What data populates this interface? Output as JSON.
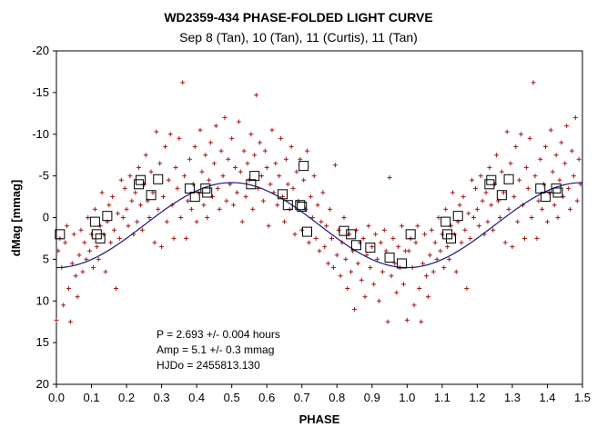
{
  "chart_data": {
    "type": "scatter",
    "title": "WD2359-434 PHASE-FOLDED LIGHT CURVE",
    "subtitle": "Sep 8 (Tan), 10 (Tan), 11 (Curtis), 11 (Tan)",
    "xlabel": "PHASE",
    "ylabel": "dMag [mmag]",
    "xlim": [
      0.0,
      1.5
    ],
    "ylim": [
      -20,
      20
    ],
    "y_inverted": true,
    "grid": false,
    "x_ticks": [
      "0.0",
      "0.1",
      "0.2",
      "0.3",
      "0.4",
      "0.5",
      "0.6",
      "0.7",
      "0.8",
      "0.9",
      "1.0",
      "1.1",
      "1.2",
      "1.3",
      "1.4",
      "1.5"
    ],
    "y_ticks": [
      "-20",
      "-15",
      "-10",
      "-5",
      "0",
      "5",
      "10",
      "15",
      "20"
    ],
    "colors": {
      "points": "#a01818",
      "binned": "#000000",
      "fit": "#1a1a7a"
    },
    "annotations": [
      "P = 2.693 +/- 0.004 hours",
      "Amp = 5.1 +/- 0.3 mmag",
      "HJDo = 2455813.130"
    ],
    "fit": {
      "type": "sinusoid",
      "period_phase": 1.0,
      "amplitude": 5.1,
      "offset": 0.9,
      "peak_phase": 0.5
    },
    "binned_points": [
      {
        "x": 0.01,
        "y": 2.0
      },
      {
        "x": 0.11,
        "y": 0.5
      },
      {
        "x": 0.115,
        "y": 2.0
      },
      {
        "x": 0.125,
        "y": 2.5
      },
      {
        "x": 0.145,
        "y": -0.2
      },
      {
        "x": 0.235,
        "y": -4.0
      },
      {
        "x": 0.24,
        "y": -4.5
      },
      {
        "x": 0.27,
        "y": -2.7
      },
      {
        "x": 0.29,
        "y": -4.6
      },
      {
        "x": 0.38,
        "y": -3.5
      },
      {
        "x": 0.395,
        "y": -2.5
      },
      {
        "x": 0.425,
        "y": -3.5
      },
      {
        "x": 0.43,
        "y": -3.0
      },
      {
        "x": 0.555,
        "y": -4.0
      },
      {
        "x": 0.565,
        "y": -5.0
      },
      {
        "x": 0.645,
        "y": -2.8
      },
      {
        "x": 0.66,
        "y": -1.5
      },
      {
        "x": 0.695,
        "y": -1.5
      },
      {
        "x": 0.7,
        "y": -1.3
      },
      {
        "x": 0.705,
        "y": -6.2
      },
      {
        "x": 0.715,
        "y": 1.7
      },
      {
        "x": 0.82,
        "y": 1.6
      },
      {
        "x": 0.84,
        "y": 2.0
      },
      {
        "x": 0.855,
        "y": 3.3
      },
      {
        "x": 0.895,
        "y": 3.6
      },
      {
        "x": 0.95,
        "y": 4.8
      },
      {
        "x": 0.985,
        "y": 5.5
      },
      {
        "x": 1.01,
        "y": 2.0
      },
      {
        "x": 1.11,
        "y": 0.5
      },
      {
        "x": 1.115,
        "y": 2.0
      },
      {
        "x": 1.125,
        "y": 2.5
      },
      {
        "x": 1.145,
        "y": -0.2
      },
      {
        "x": 1.235,
        "y": -4.0
      },
      {
        "x": 1.24,
        "y": -4.5
      },
      {
        "x": 1.27,
        "y": -2.7
      },
      {
        "x": 1.29,
        "y": -4.6
      },
      {
        "x": 1.38,
        "y": -3.5
      },
      {
        "x": 1.395,
        "y": -2.5
      },
      {
        "x": 1.425,
        "y": -3.5
      },
      {
        "x": 1.43,
        "y": -3.0
      }
    ],
    "scatter_points": [
      {
        "x": 0.0,
        "y": 12.3
      },
      {
        "x": 0.005,
        "y": 4.0
      },
      {
        "x": 0.01,
        "y": 2.5
      },
      {
        "x": 0.015,
        "y": 6.0
      },
      {
        "x": 0.02,
        "y": 10.5
      },
      {
        "x": 0.025,
        "y": 3.0
      },
      {
        "x": 0.03,
        "y": 1.0
      },
      {
        "x": 0.035,
        "y": 8.5
      },
      {
        "x": 0.04,
        "y": 12.5
      },
      {
        "x": 0.045,
        "y": 5.5
      },
      {
        "x": 0.05,
        "y": 2.0
      },
      {
        "x": 0.055,
        "y": 7.0
      },
      {
        "x": 0.06,
        "y": 9.5
      },
      {
        "x": 0.065,
        "y": 4.5
      },
      {
        "x": 0.07,
        "y": 1.5
      },
      {
        "x": 0.075,
        "y": 6.5
      },
      {
        "x": 0.08,
        "y": 3.0
      },
      {
        "x": 0.085,
        "y": 5.0
      },
      {
        "x": 0.09,
        "y": 0.0
      },
      {
        "x": 0.095,
        "y": 4.0
      },
      {
        "x": 0.1,
        "y": 2.0
      },
      {
        "x": 0.105,
        "y": 6.0
      },
      {
        "x": 0.11,
        "y": -1.0
      },
      {
        "x": 0.115,
        "y": 3.5
      },
      {
        "x": 0.12,
        "y": 5.0
      },
      {
        "x": 0.125,
        "y": 1.0
      },
      {
        "x": 0.13,
        "y": -3.0
      },
      {
        "x": 0.135,
        "y": 2.0
      },
      {
        "x": 0.14,
        "y": 6.5
      },
      {
        "x": 0.145,
        "y": 0.5
      },
      {
        "x": 0.15,
        "y": -1.5
      },
      {
        "x": 0.155,
        "y": 3.0
      },
      {
        "x": 0.16,
        "y": -2.5
      },
      {
        "x": 0.165,
        "y": 1.5
      },
      {
        "x": 0.17,
        "y": 8.5
      },
      {
        "x": 0.175,
        "y": -0.5
      },
      {
        "x": 0.18,
        "y": 2.5
      },
      {
        "x": 0.185,
        "y": -4.5
      },
      {
        "x": 0.19,
        "y": 0.0
      },
      {
        "x": 0.195,
        "y": -3.5
      },
      {
        "x": 0.2,
        "y": -1.0
      },
      {
        "x": 0.205,
        "y": 1.0
      },
      {
        "x": 0.21,
        "y": -5.0
      },
      {
        "x": 0.215,
        "y": -2.0
      },
      {
        "x": 0.22,
        "y": 2.0
      },
      {
        "x": 0.225,
        "y": -3.0
      },
      {
        "x": 0.23,
        "y": 0.5
      },
      {
        "x": 0.235,
        "y": -6.0
      },
      {
        "x": 0.24,
        "y": -1.5
      },
      {
        "x": 0.245,
        "y": 1.5
      },
      {
        "x": 0.25,
        "y": -4.0
      },
      {
        "x": 0.255,
        "y": -7.5
      },
      {
        "x": 0.26,
        "y": -2.0
      },
      {
        "x": 0.265,
        "y": 0.0
      },
      {
        "x": 0.27,
        "y": -5.5
      },
      {
        "x": 0.275,
        "y": -3.0
      },
      {
        "x": 0.28,
        "y": 3.0
      },
      {
        "x": 0.285,
        "y": -10.3
      },
      {
        "x": 0.29,
        "y": -1.0
      },
      {
        "x": 0.295,
        "y": -6.5
      },
      {
        "x": 0.3,
        "y": 3.5
      },
      {
        "x": 0.305,
        "y": -2.5
      },
      {
        "x": 0.31,
        "y": -8.5
      },
      {
        "x": 0.315,
        "y": 0.5
      },
      {
        "x": 0.32,
        "y": -4.5
      },
      {
        "x": 0.325,
        "y": -10.0
      },
      {
        "x": 0.33,
        "y": -1.5
      },
      {
        "x": 0.335,
        "y": 2.5
      },
      {
        "x": 0.34,
        "y": -6.0
      },
      {
        "x": 0.345,
        "y": -3.5
      },
      {
        "x": 0.35,
        "y": -9.5
      },
      {
        "x": 0.355,
        "y": 0.0
      },
      {
        "x": 0.36,
        "y": -16.2
      },
      {
        "x": 0.365,
        "y": -5.0
      },
      {
        "x": 0.37,
        "y": 2.5
      },
      {
        "x": 0.375,
        "y": -2.0
      },
      {
        "x": 0.38,
        "y": -7.0
      },
      {
        "x": 0.385,
        "y": -1.0
      },
      {
        "x": 0.39,
        "y": -4.0
      },
      {
        "x": 0.395,
        "y": -8.5
      },
      {
        "x": 0.4,
        "y": 0.5
      },
      {
        "x": 0.405,
        "y": -3.0
      },
      {
        "x": 0.41,
        "y": -10.5
      },
      {
        "x": 0.415,
        "y": -5.5
      },
      {
        "x": 0.42,
        "y": -1.5
      },
      {
        "x": 0.425,
        "y": -7.5
      },
      {
        "x": 0.43,
        "y": 0.0
      },
      {
        "x": 0.435,
        "y": -4.5
      },
      {
        "x": 0.44,
        "y": -9.0
      },
      {
        "x": 0.445,
        "y": -2.5
      },
      {
        "x": 0.45,
        "y": -6.5
      },
      {
        "x": 0.455,
        "y": -11.0
      },
      {
        "x": 0.46,
        "y": -3.5
      },
      {
        "x": 0.465,
        "y": -1.0
      },
      {
        "x": 0.47,
        "y": -8.0
      },
      {
        "x": 0.475,
        "y": -5.0
      },
      {
        "x": 0.48,
        "y": -12.0
      },
      {
        "x": 0.485,
        "y": -2.0
      },
      {
        "x": 0.49,
        "y": -7.0
      },
      {
        "x": 0.495,
        "y": -4.0
      },
      {
        "x": 0.5,
        "y": -9.5
      },
      {
        "x": 0.505,
        "y": -1.5
      },
      {
        "x": 0.51,
        "y": -6.0
      },
      {
        "x": 0.515,
        "y": -3.0
      },
      {
        "x": 0.52,
        "y": -11.5
      },
      {
        "x": 0.525,
        "y": -5.5
      },
      {
        "x": 0.53,
        "y": 0.5
      },
      {
        "x": 0.535,
        "y": -8.0
      },
      {
        "x": 0.54,
        "y": -2.5
      },
      {
        "x": 0.545,
        "y": -6.5
      },
      {
        "x": 0.55,
        "y": -4.5
      },
      {
        "x": 0.555,
        "y": -10.0
      },
      {
        "x": 0.56,
        "y": -1.0
      },
      {
        "x": 0.565,
        "y": -7.5
      },
      {
        "x": 0.57,
        "y": -14.7
      },
      {
        "x": 0.575,
        "y": -3.5
      },
      {
        "x": 0.58,
        "y": -9.0
      },
      {
        "x": 0.585,
        "y": -5.0
      },
      {
        "x": 0.59,
        "y": -2.0
      },
      {
        "x": 0.595,
        "y": -8.0
      },
      {
        "x": 0.6,
        "y": -6.0
      },
      {
        "x": 0.605,
        "y": 1.0
      },
      {
        "x": 0.61,
        "y": -4.0
      },
      {
        "x": 0.615,
        "y": -10.5
      },
      {
        "x": 0.62,
        "y": -3.0
      },
      {
        "x": 0.625,
        "y": -6.5
      },
      {
        "x": 0.63,
        "y": -1.5
      },
      {
        "x": 0.635,
        "y": -5.0
      },
      {
        "x": 0.64,
        "y": -9.5
      },
      {
        "x": 0.645,
        "y": -2.5
      },
      {
        "x": 0.65,
        "y": 0.5
      },
      {
        "x": 0.655,
        "y": -7.0
      },
      {
        "x": 0.66,
        "y": -4.0
      },
      {
        "x": 0.665,
        "y": -1.0
      },
      {
        "x": 0.67,
        "y": -8.5
      },
      {
        "x": 0.675,
        "y": -3.5
      },
      {
        "x": 0.68,
        "y": 2.0
      },
      {
        "x": 0.685,
        "y": -5.5
      },
      {
        "x": 0.69,
        "y": -2.0
      },
      {
        "x": 0.695,
        "y": -7.0
      },
      {
        "x": 0.7,
        "y": 1.5
      },
      {
        "x": 0.705,
        "y": -4.5
      },
      {
        "x": 0.71,
        "y": -1.0
      },
      {
        "x": 0.715,
        "y": -8.0
      },
      {
        "x": 0.72,
        "y": 3.0
      },
      {
        "x": 0.725,
        "y": -2.5
      },
      {
        "x": 0.73,
        "y": 0.0
      },
      {
        "x": 0.735,
        "y": -5.0
      },
      {
        "x": 0.74,
        "y": 2.5
      },
      {
        "x": 0.745,
        "y": -1.5
      },
      {
        "x": 0.75,
        "y": 4.0
      },
      {
        "x": 0.755,
        "y": 0.5
      },
      {
        "x": 0.76,
        "y": -3.0
      },
      {
        "x": 0.765,
        "y": 3.5
      },
      {
        "x": 0.77,
        "y": 1.0
      },
      {
        "x": 0.775,
        "y": 5.5
      },
      {
        "x": 0.78,
        "y": -1.0
      },
      {
        "x": 0.785,
        "y": 2.5
      },
      {
        "x": 0.79,
        "y": 6.0
      },
      {
        "x": 0.795,
        "y": -6.3
      },
      {
        "x": 0.8,
        "y": 4.5
      },
      {
        "x": 0.805,
        "y": 1.5
      },
      {
        "x": 0.81,
        "y": 7.0
      },
      {
        "x": 0.815,
        "y": 3.0
      },
      {
        "x": 0.82,
        "y": 0.0
      },
      {
        "x": 0.825,
        "y": 5.0
      },
      {
        "x": 0.83,
        "y": 8.5
      },
      {
        "x": 0.835,
        "y": 2.0
      },
      {
        "x": 0.84,
        "y": 6.5
      },
      {
        "x": 0.845,
        "y": 4.0
      },
      {
        "x": 0.85,
        "y": 11.0
      },
      {
        "x": 0.855,
        "y": 1.5
      },
      {
        "x": 0.86,
        "y": 5.5
      },
      {
        "x": 0.865,
        "y": 3.0
      },
      {
        "x": 0.87,
        "y": 7.5
      },
      {
        "x": 0.875,
        "y": 2.5
      },
      {
        "x": 0.88,
        "y": 9.5
      },
      {
        "x": 0.885,
        "y": 4.5
      },
      {
        "x": 0.89,
        "y": 1.0
      },
      {
        "x": 0.895,
        "y": 6.0
      },
      {
        "x": 0.9,
        "y": 3.5
      },
      {
        "x": 0.905,
        "y": 8.0
      },
      {
        "x": 0.91,
        "y": 2.0
      },
      {
        "x": 0.915,
        "y": 5.0
      },
      {
        "x": 0.92,
        "y": 10.0
      },
      {
        "x": 0.925,
        "y": 3.0
      },
      {
        "x": 0.93,
        "y": 6.5
      },
      {
        "x": 0.935,
        "y": 1.5
      },
      {
        "x": 0.94,
        "y": 4.0
      },
      {
        "x": 0.945,
        "y": 12.5
      },
      {
        "x": 0.95,
        "y": -4.8
      },
      {
        "x": 0.955,
        "y": 7.0
      },
      {
        "x": 0.96,
        "y": 2.5
      },
      {
        "x": 0.965,
        "y": 5.5
      },
      {
        "x": 0.97,
        "y": 9.0
      },
      {
        "x": 0.975,
        "y": 3.5
      },
      {
        "x": 0.98,
        "y": 6.0
      },
      {
        "x": 0.985,
        "y": 1.0
      },
      {
        "x": 0.99,
        "y": 8.0
      },
      {
        "x": 0.995,
        "y": 4.0
      },
      {
        "x": 1.0,
        "y": 12.3
      },
      {
        "x": 1.005,
        "y": 4.0
      },
      {
        "x": 1.01,
        "y": 2.5
      },
      {
        "x": 1.015,
        "y": 6.0
      },
      {
        "x": 1.02,
        "y": 10.5
      },
      {
        "x": 1.025,
        "y": 3.0
      },
      {
        "x": 1.03,
        "y": 1.0
      },
      {
        "x": 1.035,
        "y": 8.5
      },
      {
        "x": 1.04,
        "y": 12.5
      },
      {
        "x": 1.045,
        "y": 5.5
      },
      {
        "x": 1.05,
        "y": 2.0
      },
      {
        "x": 1.055,
        "y": 7.0
      },
      {
        "x": 1.06,
        "y": 9.5
      },
      {
        "x": 1.065,
        "y": 4.5
      },
      {
        "x": 1.07,
        "y": 1.5
      },
      {
        "x": 1.075,
        "y": 6.5
      },
      {
        "x": 1.08,
        "y": 3.0
      },
      {
        "x": 1.085,
        "y": 5.0
      },
      {
        "x": 1.09,
        "y": 0.0
      },
      {
        "x": 1.095,
        "y": 4.0
      },
      {
        "x": 1.1,
        "y": 2.0
      },
      {
        "x": 1.105,
        "y": 6.0
      },
      {
        "x": 1.11,
        "y": -1.0
      },
      {
        "x": 1.115,
        "y": 3.5
      },
      {
        "x": 1.12,
        "y": 5.0
      },
      {
        "x": 1.125,
        "y": 1.0
      },
      {
        "x": 1.13,
        "y": -3.0
      },
      {
        "x": 1.135,
        "y": 2.0
      },
      {
        "x": 1.14,
        "y": 6.5
      },
      {
        "x": 1.145,
        "y": 0.5
      },
      {
        "x": 1.15,
        "y": -1.5
      },
      {
        "x": 1.155,
        "y": 3.0
      },
      {
        "x": 1.16,
        "y": -2.5
      },
      {
        "x": 1.165,
        "y": 1.5
      },
      {
        "x": 1.17,
        "y": 8.5
      },
      {
        "x": 1.175,
        "y": -0.5
      },
      {
        "x": 1.18,
        "y": 2.5
      },
      {
        "x": 1.185,
        "y": -4.5
      },
      {
        "x": 1.19,
        "y": 0.0
      },
      {
        "x": 1.195,
        "y": -3.5
      },
      {
        "x": 1.2,
        "y": -1.0
      },
      {
        "x": 1.205,
        "y": 1.0
      },
      {
        "x": 1.21,
        "y": -5.0
      },
      {
        "x": 1.215,
        "y": -2.0
      },
      {
        "x": 1.22,
        "y": 2.0
      },
      {
        "x": 1.225,
        "y": -3.0
      },
      {
        "x": 1.23,
        "y": 0.5
      },
      {
        "x": 1.235,
        "y": -6.0
      },
      {
        "x": 1.24,
        "y": -1.5
      },
      {
        "x": 1.245,
        "y": 1.5
      },
      {
        "x": 1.25,
        "y": -4.0
      },
      {
        "x": 1.255,
        "y": -7.5
      },
      {
        "x": 1.26,
        "y": -2.0
      },
      {
        "x": 1.265,
        "y": 0.0
      },
      {
        "x": 1.27,
        "y": -5.5
      },
      {
        "x": 1.275,
        "y": -3.0
      },
      {
        "x": 1.28,
        "y": 3.0
      },
      {
        "x": 1.285,
        "y": -10.3
      },
      {
        "x": 1.29,
        "y": -1.0
      },
      {
        "x": 1.295,
        "y": -6.5
      },
      {
        "x": 1.3,
        "y": 3.5
      },
      {
        "x": 1.305,
        "y": -2.5
      },
      {
        "x": 1.31,
        "y": -8.5
      },
      {
        "x": 1.315,
        "y": 0.5
      },
      {
        "x": 1.32,
        "y": -4.5
      },
      {
        "x": 1.325,
        "y": -10.0
      },
      {
        "x": 1.33,
        "y": -1.5
      },
      {
        "x": 1.335,
        "y": 2.5
      },
      {
        "x": 1.34,
        "y": -6.0
      },
      {
        "x": 1.345,
        "y": -3.5
      },
      {
        "x": 1.35,
        "y": -9.5
      },
      {
        "x": 1.355,
        "y": 0.0
      },
      {
        "x": 1.36,
        "y": -16.2
      },
      {
        "x": 1.365,
        "y": -5.0
      },
      {
        "x": 1.37,
        "y": 2.5
      },
      {
        "x": 1.375,
        "y": -2.0
      },
      {
        "x": 1.38,
        "y": -7.0
      },
      {
        "x": 1.385,
        "y": -1.0
      },
      {
        "x": 1.39,
        "y": -4.0
      },
      {
        "x": 1.395,
        "y": -8.5
      },
      {
        "x": 1.4,
        "y": 0.5
      },
      {
        "x": 1.405,
        "y": -3.0
      },
      {
        "x": 1.41,
        "y": -10.5
      },
      {
        "x": 1.415,
        "y": -5.5
      },
      {
        "x": 1.42,
        "y": -1.5
      },
      {
        "x": 1.425,
        "y": -7.5
      },
      {
        "x": 1.43,
        "y": 0.0
      },
      {
        "x": 1.435,
        "y": -4.5
      },
      {
        "x": 1.44,
        "y": -9.0
      },
      {
        "x": 1.445,
        "y": -2.5
      },
      {
        "x": 1.45,
        "y": -6.5
      },
      {
        "x": 1.455,
        "y": -11.0
      },
      {
        "x": 1.46,
        "y": -3.5
      },
      {
        "x": 1.465,
        "y": -1.0
      },
      {
        "x": 1.47,
        "y": -8.0
      },
      {
        "x": 1.475,
        "y": -5.0
      },
      {
        "x": 1.48,
        "y": -12.0
      },
      {
        "x": 1.485,
        "y": -2.0
      },
      {
        "x": 1.49,
        "y": -7.0
      },
      {
        "x": 1.495,
        "y": -4.0
      }
    ]
  }
}
